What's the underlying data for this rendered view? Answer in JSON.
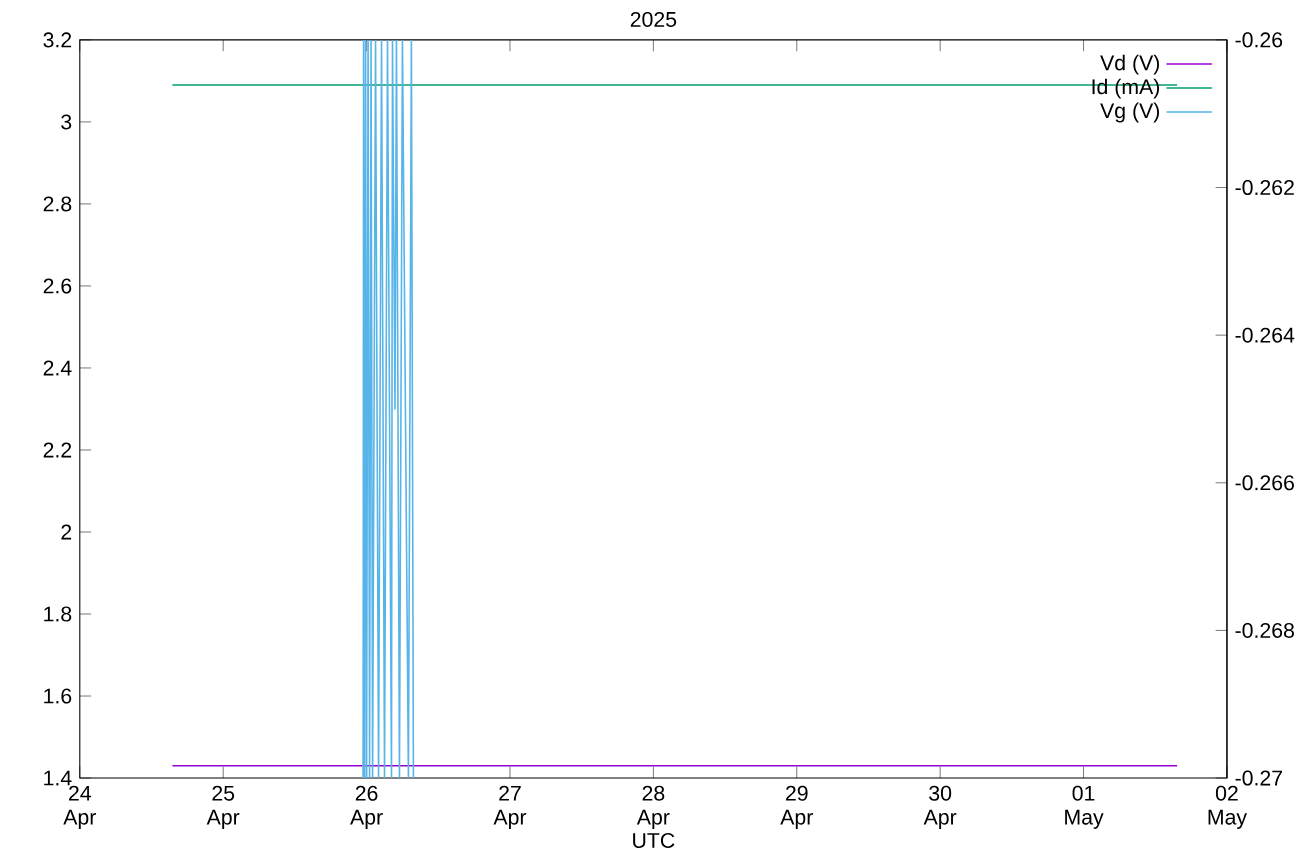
{
  "chart_data": {
    "type": "line",
    "title": "2025",
    "xlabel": "UTC",
    "xlim": [
      "2025-04-24",
      "2025-05-02"
    ],
    "xticks": [
      {
        "value": "2025-04-24",
        "label": "24 Apr"
      },
      {
        "value": "2025-04-25",
        "label": "25 Apr"
      },
      {
        "value": "2025-04-26",
        "label": "26 Apr"
      },
      {
        "value": "2025-04-27",
        "label": "27 Apr"
      },
      {
        "value": "2025-04-28",
        "label": "28 Apr"
      },
      {
        "value": "2025-04-29",
        "label": "29 Apr"
      },
      {
        "value": "2025-04-30",
        "label": "30 Apr"
      },
      {
        "value": "2025-05-01",
        "label": "01 May"
      },
      {
        "value": "2025-05-02",
        "label": "02 May"
      }
    ],
    "ylim": [
      1.4,
      3.2
    ],
    "yticks": [
      1.4,
      1.6,
      1.8,
      2,
      2.2,
      2.4,
      2.6,
      2.8,
      3,
      3.2
    ],
    "y2lim": [
      -0.27,
      -0.26
    ],
    "y2ticks": [
      -0.27,
      -0.268,
      -0.266,
      -0.264,
      -0.262,
      -0.26
    ],
    "legend": "top right",
    "series": [
      {
        "name": "Vd (V)",
        "color": "#9400d3",
        "x": [
          "2025-04-24T15:30",
          "2025-05-01T15:40"
        ],
        "values": [
          1.43,
          1.43
        ]
      },
      {
        "name": "Id (mA)",
        "color": "#009e73",
        "x": [
          "2025-04-24T15:30",
          "2025-05-01T15:40"
        ],
        "values": [
          3.09,
          3.09
        ]
      },
      {
        "name": "Vg (V)",
        "color": "#56b4e9",
        "axis": "y2",
        "x": [
          "2025-04-25T23:25",
          "2025-04-25T23:30",
          "2025-04-25T23:40",
          "2025-04-25T23:50",
          "2025-04-26T00:00",
          "2025-04-26T00:15",
          "2025-04-26T00:30",
          "2025-04-26T00:45",
          "2025-04-26T01:00",
          "2025-04-26T01:30",
          "2025-04-26T02:00",
          "2025-04-26T02:30",
          "2025-04-26T03:00",
          "2025-04-26T03:30",
          "2025-04-26T04:10",
          "2025-04-26T04:20",
          "2025-04-26T04:45",
          "2025-04-26T05:00",
          "2025-04-26T05:15",
          "2025-04-26T05:30",
          "2025-04-26T05:45",
          "2025-04-26T06:00",
          "2025-04-26T06:30",
          "2025-04-26T07:00",
          "2025-04-26T07:30",
          "2025-04-26T07:50"
        ],
        "values": [
          -0.27,
          -0.26,
          -0.27,
          -0.26,
          -0.27,
          -0.26,
          -0.27,
          -0.26,
          -0.27,
          -0.26,
          -0.27,
          -0.26,
          -0.27,
          -0.26,
          -0.27,
          -0.26,
          -0.265,
          -0.26,
          -0.265,
          -0.27,
          -0.265,
          -0.26,
          -0.265,
          -0.27,
          -0.26,
          -0.27
        ]
      }
    ]
  }
}
